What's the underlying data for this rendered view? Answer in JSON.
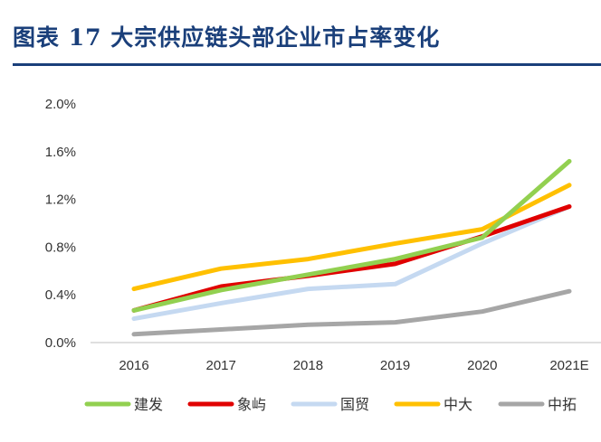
{
  "header": {
    "title": "图表 17    大宗供应链头部企业市占率变化"
  },
  "chart_data": {
    "type": "line",
    "title": "",
    "xlabel": "",
    "ylabel": "",
    "categories": [
      "2016",
      "2017",
      "2018",
      "2019",
      "2020",
      "2021E"
    ],
    "y_ticks": [
      "0.0%",
      "0.4%",
      "0.8%",
      "1.2%",
      "1.6%",
      "2.0%"
    ],
    "ylim": [
      0,
      2.0
    ],
    "grid": false,
    "legend_position": "bottom",
    "series": [
      {
        "name": "建发",
        "color": "#92d050",
        "values": [
          0.27,
          0.44,
          0.57,
          0.7,
          0.88,
          1.52
        ]
      },
      {
        "name": "象屿",
        "color": "#e00000",
        "values": [
          0.27,
          0.47,
          0.56,
          0.66,
          0.89,
          1.14
        ]
      },
      {
        "name": "国贸",
        "color": "#c5d9f1",
        "values": [
          0.2,
          0.33,
          0.45,
          0.49,
          0.83,
          1.14
        ]
      },
      {
        "name": "中大",
        "color": "#ffc000",
        "values": [
          0.45,
          0.62,
          0.7,
          0.83,
          0.95,
          1.32
        ]
      },
      {
        "name": "中拓",
        "color": "#a6a6a6",
        "values": [
          0.07,
          0.11,
          0.15,
          0.17,
          0.26,
          0.43
        ]
      }
    ]
  }
}
